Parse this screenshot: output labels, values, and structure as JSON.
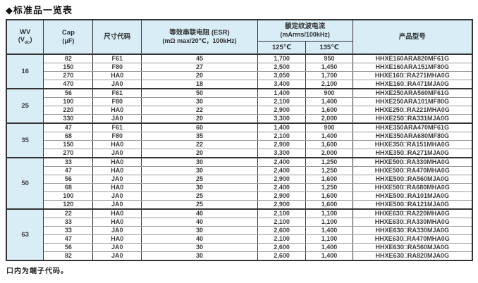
{
  "colors": {
    "header_bg": "#d9edf7",
    "border_dark": "#333333",
    "border_light": "#9c9c9c",
    "text": "#3d3d3d"
  },
  "title": "◆标准品一览表",
  "footnote": "口内为端子代码。",
  "table": {
    "headers": {
      "wv_line1": "WV",
      "wv_sub_pre": "(V",
      "wv_sub": "dc",
      "wv_sub_post": ")",
      "cap_line1": "Cap",
      "cap_line2": "(μF)",
      "size_code": "尺寸代码",
      "esr_line1": "等效串联电阻 (ESR)",
      "esr_line2": "(mΩ max/20℃，100kHz)",
      "ripple_line1": "额定纹波电流",
      "ripple_line2": "(mArms/100kHz)",
      "temp_125": "125℃",
      "temp_135": "135℃",
      "product": "产品型号"
    },
    "groups": [
      {
        "wv": "16",
        "rows": [
          {
            "cap": "82",
            "size": "F61",
            "esr": "45",
            "r125": "1,700",
            "r135": "950",
            "model": "HHXE160ARA820MF61G"
          },
          {
            "cap": "150",
            "size": "F80",
            "esr": "27",
            "r125": "2,500",
            "r135": "1,450",
            "model": "HHXE160ARA151MF80G"
          },
          {
            "cap": "270",
            "size": "HA0",
            "esr": "20",
            "r125": "3,050",
            "r135": "1,700",
            "model": "HHXE160□RA271MHA0G"
          },
          {
            "cap": "470",
            "size": "JA0",
            "esr": "18",
            "r125": "3,400",
            "r135": "2,100",
            "model": "HHXE160□RA471MJA0G"
          }
        ]
      },
      {
        "wv": "25",
        "rows": [
          {
            "cap": "56",
            "size": "F61",
            "esr": "50",
            "r125": "1,400",
            "r135": "900",
            "model": "HHXE250ARA560MF61G"
          },
          {
            "cap": "100",
            "size": "F80",
            "esr": "30",
            "r125": "2,100",
            "r135": "1,400",
            "model": "HHXE250ARA101MF80G"
          },
          {
            "cap": "220",
            "size": "HA0",
            "esr": "22",
            "r125": "2,900",
            "r135": "1,600",
            "model": "HHXE250□RA221MHA0G"
          },
          {
            "cap": "330",
            "size": "JA0",
            "esr": "20",
            "r125": "3,300",
            "r135": "2,000",
            "model": "HHXE250□RA331MJA0G"
          }
        ]
      },
      {
        "wv": "35",
        "rows": [
          {
            "cap": "47",
            "size": "F61",
            "esr": "60",
            "r125": "1,400",
            "r135": "900",
            "model": "HHXE350ARA470MF61G"
          },
          {
            "cap": "68",
            "size": "F80",
            "esr": "35",
            "r125": "2,100",
            "r135": "1,400",
            "model": "HHXE350ARA680MF80G"
          },
          {
            "cap": "150",
            "size": "HA0",
            "esr": "22",
            "r125": "2,900",
            "r135": "1,600",
            "model": "HHXE350□RA151MHA0G"
          },
          {
            "cap": "270",
            "size": "JA0",
            "esr": "20",
            "r125": "3,300",
            "r135": "2,000",
            "model": "HHXE350□RA271MJA0G"
          }
        ]
      },
      {
        "wv": "50",
        "rows": [
          {
            "cap": "33",
            "size": "HA0",
            "esr": "30",
            "r125": "2,400",
            "r135": "1,250",
            "model": "HHXE500□RA330MHA0G"
          },
          {
            "cap": "47",
            "size": "HA0",
            "esr": "30",
            "r125": "2,400",
            "r135": "1,250",
            "model": "HHXE500□RA470MHA0G"
          },
          {
            "cap": "56",
            "size": "JA0",
            "esr": "25",
            "r125": "2,900",
            "r135": "1,600",
            "model": "HHXE500□RA560MJA0G"
          },
          {
            "cap": "68",
            "size": "HA0",
            "esr": "30",
            "r125": "2,400",
            "r135": "1,250",
            "model": "HHXE500□RA680MHA0G"
          },
          {
            "cap": "100",
            "size": "JA0",
            "esr": "25",
            "r125": "2,900",
            "r135": "1,600",
            "model": "HHXE500□RA101MJA0G"
          },
          {
            "cap": "120",
            "size": "JA0",
            "esr": "25",
            "r125": "2,900",
            "r135": "1,600",
            "model": "HHXE500□RA121MJA0G"
          }
        ]
      },
      {
        "wv": "63",
        "rows": [
          {
            "cap": "22",
            "size": "HA0",
            "esr": "40",
            "r125": "2,100",
            "r135": "1,100",
            "model": "HHXE630□RA220MHA0G"
          },
          {
            "cap": "33",
            "size": "HA0",
            "esr": "40",
            "r125": "2,100",
            "r135": "1,100",
            "model": "HHXE630□RA330MHA0G"
          },
          {
            "cap": "33",
            "size": "JA0",
            "esr": "30",
            "r125": "2,600",
            "r135": "1,400",
            "model": "HHXE630□RA330MJA0G"
          },
          {
            "cap": "47",
            "size": "HA0",
            "esr": "40",
            "r125": "2,100",
            "r135": "1,100",
            "model": "HHXE630□RA470MHA0G"
          },
          {
            "cap": "56",
            "size": "JA0",
            "esr": "30",
            "r125": "2,600",
            "r135": "1,400",
            "model": "HHXE630□RA560MJA0G"
          },
          {
            "cap": "82",
            "size": "JA0",
            "esr": "30",
            "r125": "2,600",
            "r135": "1,400",
            "model": "HHXE630□RA820MJA0G"
          }
        ]
      }
    ]
  }
}
